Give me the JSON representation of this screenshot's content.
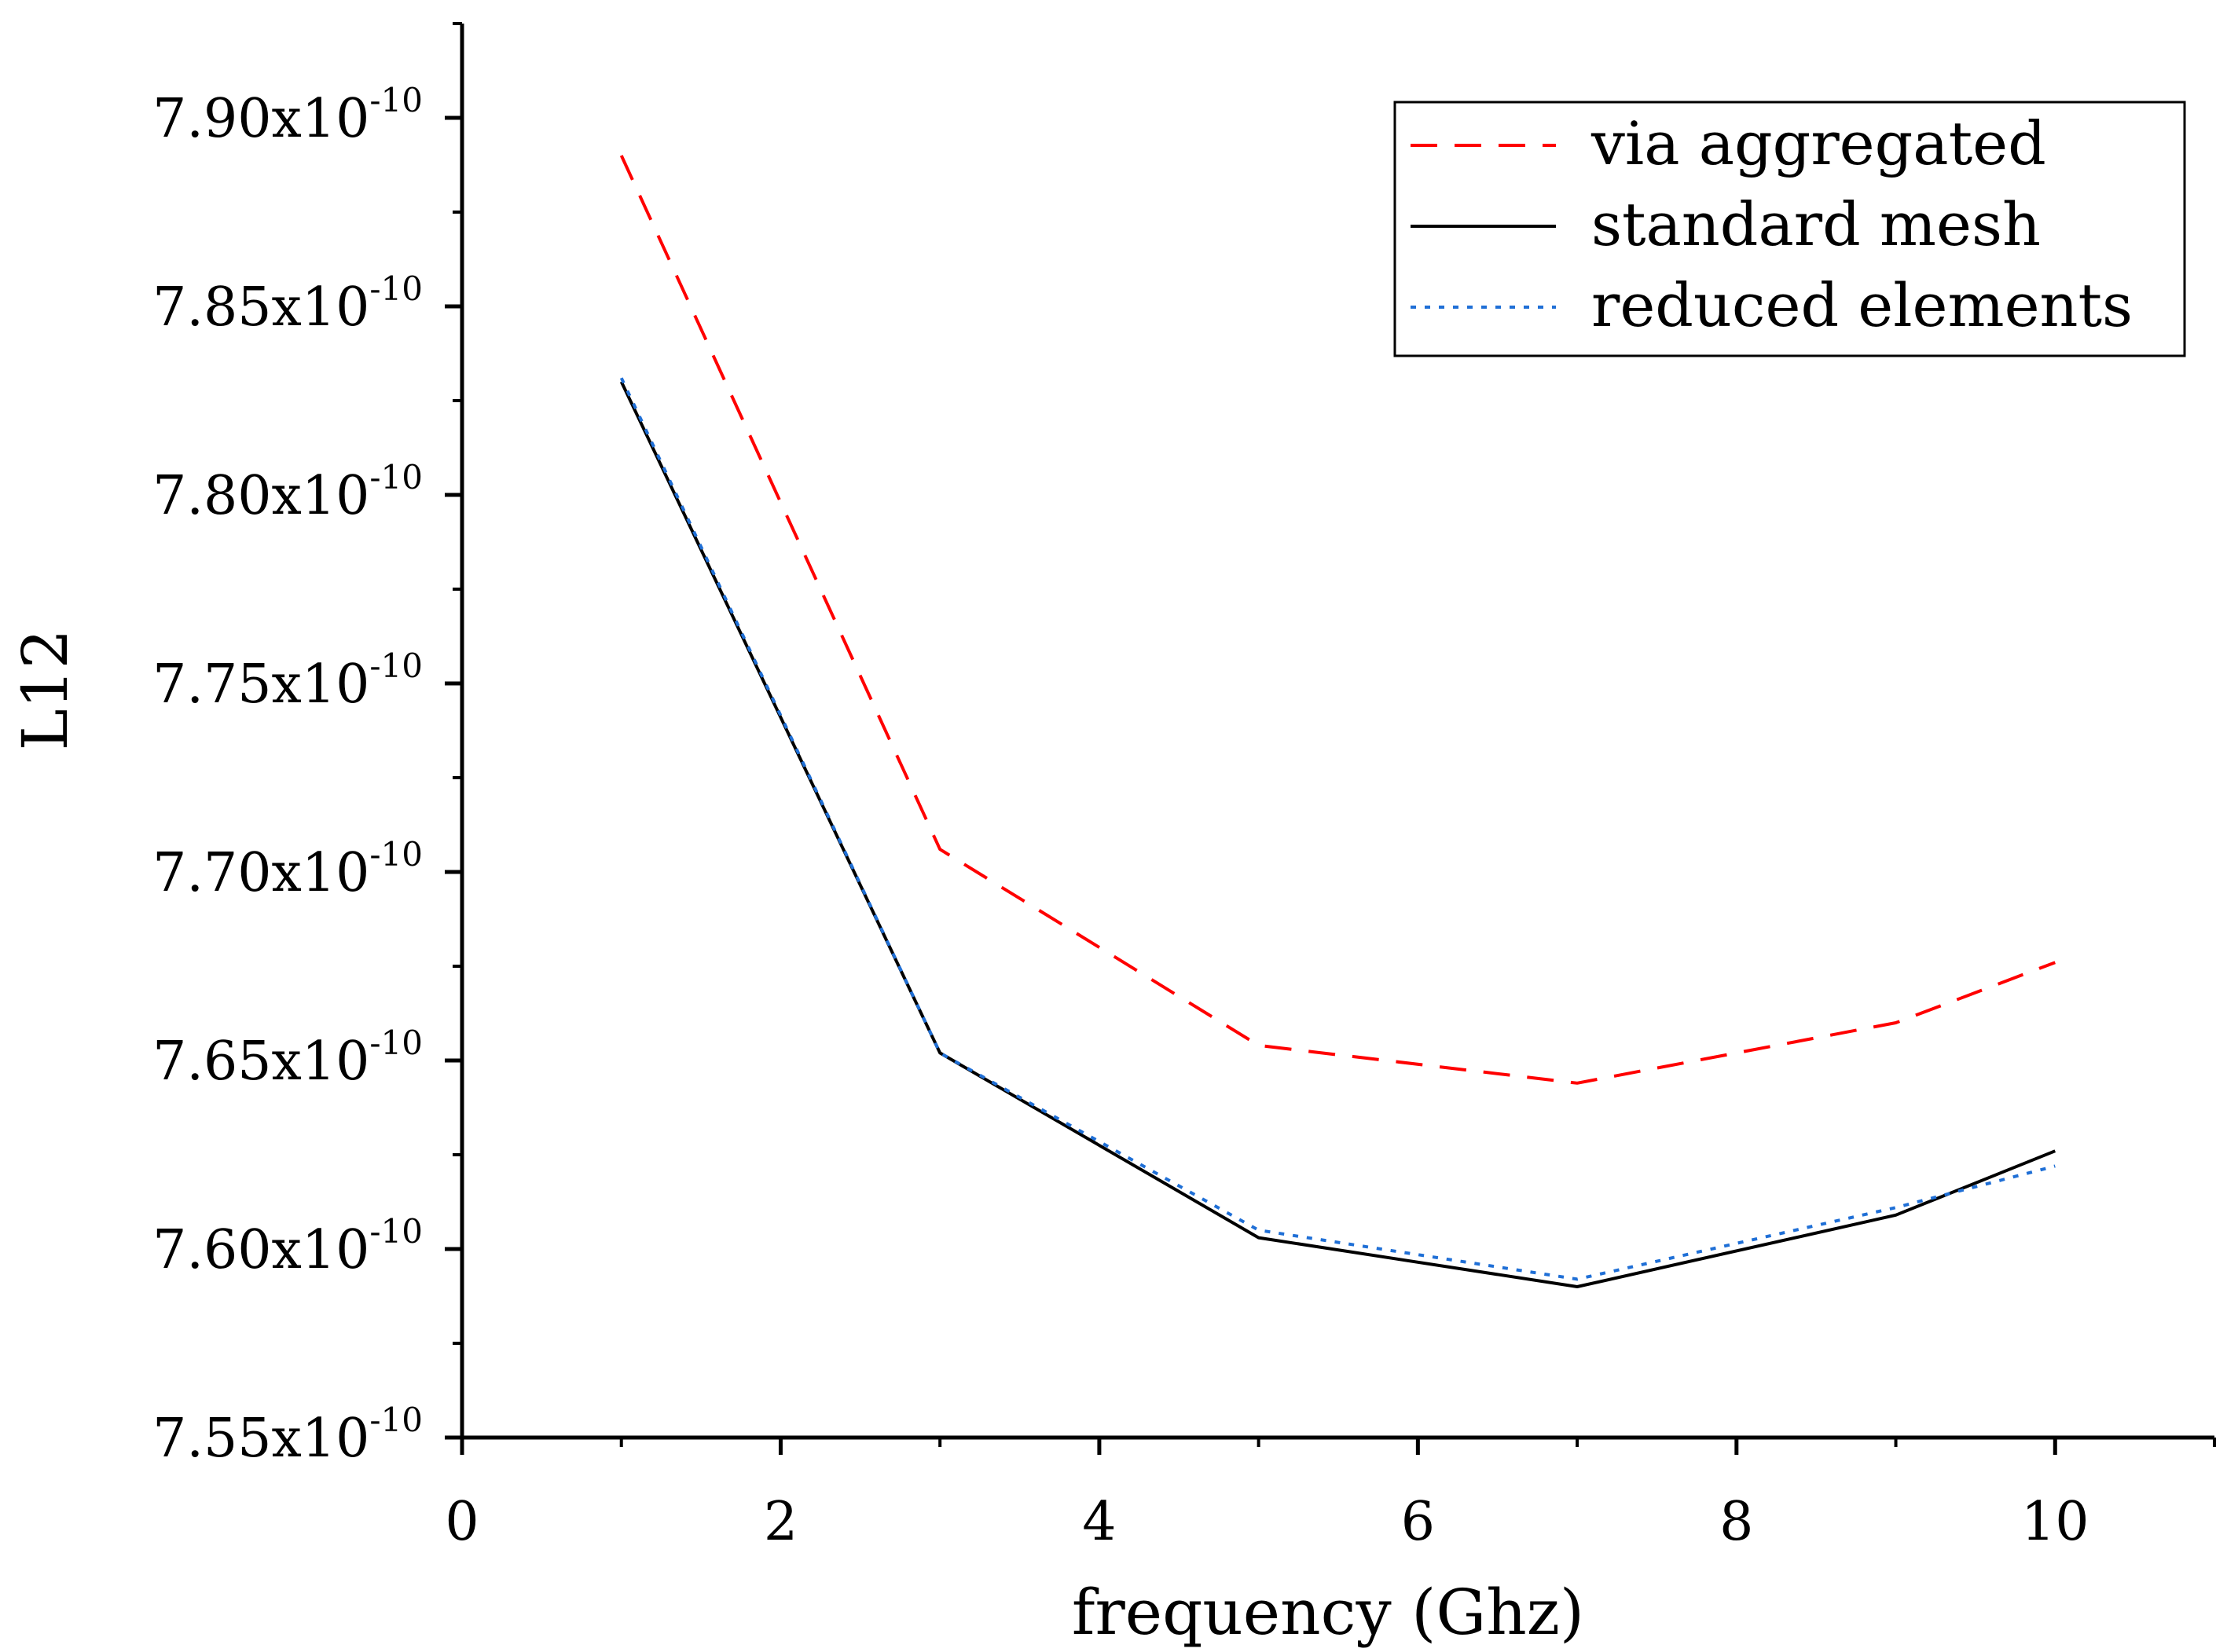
{
  "chart_data": {
    "type": "line",
    "title": "",
    "xlabel": "frequency (Ghz)",
    "ylabel": "L12",
    "xlim": [
      0,
      11
    ],
    "ylim": [
      7.55e-10,
      7.925e-10
    ],
    "x_ticks": [
      0,
      2,
      4,
      6,
      8,
      10
    ],
    "x_tick_labels": [
      "0",
      "2",
      "4",
      "6",
      "8",
      "10"
    ],
    "y_ticks": [
      7.55e-10,
      7.6e-10,
      7.65e-10,
      7.7e-10,
      7.75e-10,
      7.8e-10,
      7.85e-10,
      7.9e-10
    ],
    "y_tick_mantissas": [
      "7.55x10",
      "7.60x10",
      "7.65x10",
      "7.70x10",
      "7.75x10",
      "7.80x10",
      "7.85x10",
      "7.90x10"
    ],
    "y_tick_exponent": "-10",
    "grid": false,
    "legend_position": "top-right",
    "x": [
      1,
      3,
      5,
      7,
      9,
      10
    ],
    "series": [
      {
        "name": "via aggregated",
        "style": "dashed",
        "color": "#ff0000",
        "values": [
          7.89e-10,
          7.706e-10,
          7.654e-10,
          7.644e-10,
          7.66e-10,
          7.676e-10
        ]
      },
      {
        "name": "standard mesh",
        "style": "solid",
        "color": "#000000",
        "values": [
          7.83e-10,
          7.652e-10,
          7.603e-10,
          7.59e-10,
          7.609e-10,
          7.626e-10
        ]
      },
      {
        "name": "reduced elements",
        "style": "dotted",
        "color": "#1f6fd6",
        "values": [
          7.831e-10,
          7.652e-10,
          7.605e-10,
          7.592e-10,
          7.611e-10,
          7.622e-10
        ]
      }
    ]
  }
}
